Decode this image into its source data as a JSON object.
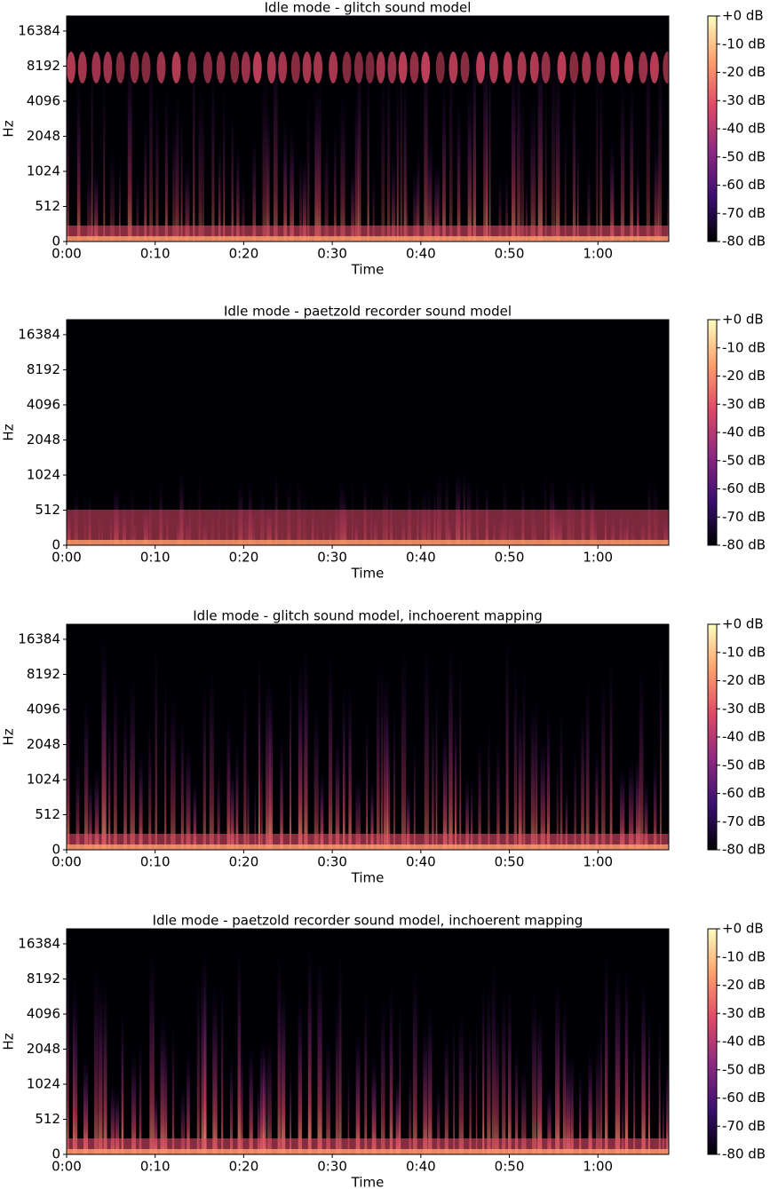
{
  "chart_data": [
    {
      "type": "spectrogram",
      "title": "Idle mode - glitch sound model",
      "xlabel": "Time",
      "ylabel": "Hz",
      "xlim": [
        0,
        68
      ],
      "xticks": [
        {
          "value": 0,
          "label": "0:00"
        },
        {
          "value": 10,
          "label": "0:10"
        },
        {
          "value": 20,
          "label": "0:20"
        },
        {
          "value": 30,
          "label": "0:30"
        },
        {
          "value": 40,
          "label": "0:40"
        },
        {
          "value": 50,
          "label": "0:50"
        },
        {
          "value": 60,
          "label": "1:00"
        }
      ],
      "ylim": [
        0,
        22050
      ],
      "yscale": "symlog",
      "linthresh": 512,
      "yticks": [
        0,
        512,
        1024,
        2048,
        4096,
        8192,
        16384
      ],
      "clim": [
        -80,
        0
      ],
      "cticks": [
        {
          "value": 0,
          "label": "+0 dB"
        },
        {
          "value": -10,
          "label": "-10 dB"
        },
        {
          "value": -20,
          "label": "-20 dB"
        },
        {
          "value": -30,
          "label": "-30 dB"
        },
        {
          "value": -40,
          "label": "-40 dB"
        },
        {
          "value": -50,
          "label": "-50 dB"
        },
        {
          "value": -60,
          "label": "-60 dB"
        },
        {
          "value": -70,
          "label": "-70 dB"
        },
        {
          "value": -80,
          "label": "-80 dB"
        }
      ],
      "colormap": [
        "#000004",
        "#3b0f70",
        "#8c2981",
        "#de4968",
        "#fe9f6d",
        "#fcfdbf"
      ]
    },
    {
      "type": "spectrogram",
      "title": "Idle mode - paetzold recorder sound model",
      "xlabel": "Time",
      "ylabel": "Hz",
      "xlim": [
        0,
        68
      ],
      "xticks": [
        {
          "value": 0,
          "label": "0:00"
        },
        {
          "value": 10,
          "label": "0:10"
        },
        {
          "value": 20,
          "label": "0:20"
        },
        {
          "value": 30,
          "label": "0:30"
        },
        {
          "value": 40,
          "label": "0:40"
        },
        {
          "value": 50,
          "label": "0:50"
        },
        {
          "value": 60,
          "label": "1:00"
        }
      ],
      "ylim": [
        0,
        22050
      ],
      "yscale": "symlog",
      "linthresh": 512,
      "yticks": [
        0,
        512,
        1024,
        2048,
        4096,
        8192,
        16384
      ],
      "clim": [
        -80,
        0
      ],
      "cticks": [
        {
          "value": 0,
          "label": "+0 dB"
        },
        {
          "value": -10,
          "label": "-10 dB"
        },
        {
          "value": -20,
          "label": "-20 dB"
        },
        {
          "value": -30,
          "label": "-30 dB"
        },
        {
          "value": -40,
          "label": "-40 dB"
        },
        {
          "value": -50,
          "label": "-50 dB"
        },
        {
          "value": -60,
          "label": "-60 dB"
        },
        {
          "value": -70,
          "label": "-70 dB"
        },
        {
          "value": -80,
          "label": "-80 dB"
        }
      ],
      "colormap": [
        "#000004",
        "#3b0f70",
        "#8c2981",
        "#de4968",
        "#fe9f6d",
        "#fcfdbf"
      ]
    },
    {
      "type": "spectrogram",
      "title": "Idle mode - glitch sound model, inchoerent mapping",
      "xlabel": "Time",
      "ylabel": "Hz",
      "xlim": [
        0,
        68
      ],
      "xticks": [
        {
          "value": 0,
          "label": "0:00"
        },
        {
          "value": 10,
          "label": "0:10"
        },
        {
          "value": 20,
          "label": "0:20"
        },
        {
          "value": 30,
          "label": "0:30"
        },
        {
          "value": 40,
          "label": "0:40"
        },
        {
          "value": 50,
          "label": "0:50"
        },
        {
          "value": 60,
          "label": "1:00"
        }
      ],
      "ylim": [
        0,
        22050
      ],
      "yscale": "symlog",
      "linthresh": 512,
      "yticks": [
        0,
        512,
        1024,
        2048,
        4096,
        8192,
        16384
      ],
      "clim": [
        -80,
        0
      ],
      "cticks": [
        {
          "value": 0,
          "label": "+0 dB"
        },
        {
          "value": -10,
          "label": "-10 dB"
        },
        {
          "value": -20,
          "label": "-20 dB"
        },
        {
          "value": -30,
          "label": "-30 dB"
        },
        {
          "value": -40,
          "label": "-40 dB"
        },
        {
          "value": -50,
          "label": "-50 dB"
        },
        {
          "value": -60,
          "label": "-60 dB"
        },
        {
          "value": -70,
          "label": "-70 dB"
        },
        {
          "value": -80,
          "label": "-80 dB"
        }
      ],
      "colormap": [
        "#000004",
        "#3b0f70",
        "#8c2981",
        "#de4968",
        "#fe9f6d",
        "#fcfdbf"
      ]
    },
    {
      "type": "spectrogram",
      "title": "Idle mode - paetzold recorder sound model, inchoerent mapping",
      "xlabel": "Time",
      "ylabel": "Hz",
      "xlim": [
        0,
        68
      ],
      "xticks": [
        {
          "value": 0,
          "label": "0:00"
        },
        {
          "value": 10,
          "label": "0:10"
        },
        {
          "value": 20,
          "label": "0:20"
        },
        {
          "value": 30,
          "label": "0:30"
        },
        {
          "value": 40,
          "label": "0:40"
        },
        {
          "value": 50,
          "label": "0:50"
        },
        {
          "value": 60,
          "label": "1:00"
        }
      ],
      "ylim": [
        0,
        22050
      ],
      "yscale": "symlog",
      "linthresh": 512,
      "yticks": [
        0,
        512,
        1024,
        2048,
        4096,
        8192,
        16384
      ],
      "clim": [
        -80,
        0
      ],
      "cticks": [
        {
          "value": 0,
          "label": "+0 dB"
        },
        {
          "value": -10,
          "label": "-10 dB"
        },
        {
          "value": -20,
          "label": "-20 dB"
        },
        {
          "value": -30,
          "label": "-30 dB"
        },
        {
          "value": -40,
          "label": "-40 dB"
        },
        {
          "value": -50,
          "label": "-50 dB"
        },
        {
          "value": -60,
          "label": "-60 dB"
        },
        {
          "value": -70,
          "label": "-70 dB"
        },
        {
          "value": -80,
          "label": "-80 dB"
        }
      ],
      "colormap": [
        "#000004",
        "#3b0f70",
        "#8c2981",
        "#de4968",
        "#fe9f6d",
        "#fcfdbf"
      ]
    }
  ]
}
